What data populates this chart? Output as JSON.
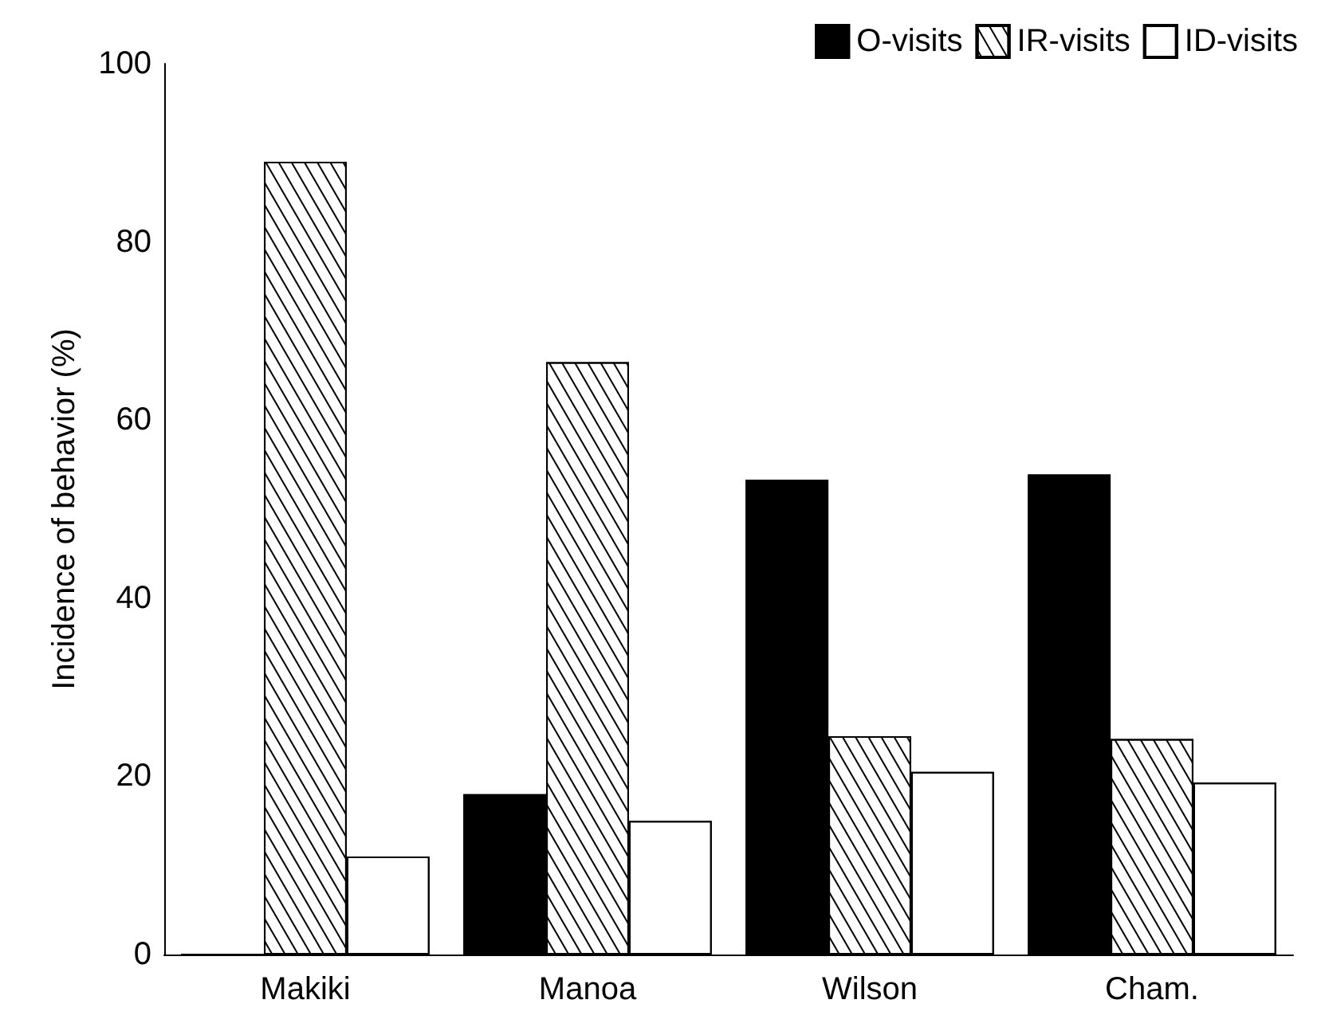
{
  "chart_data": {
    "type": "bar",
    "ylabel": "Incidence of behavior (%)",
    "categories": [
      "Makiki",
      "Manoa",
      "Wilson",
      "Cham."
    ],
    "series": [
      {
        "name": "O-visits",
        "color": "#000000",
        "values": [
          0,
          18,
          53.3,
          53.9
        ]
      },
      {
        "name": "IR-visits",
        "color": "#ffffff",
        "values": [
          89,
          66.5,
          24.5,
          24.2
        ]
      },
      {
        "name": "ID-visits",
        "color": "#ffffff",
        "values": [
          11,
          15,
          20.5,
          19.3
        ]
      }
    ],
    "ylim": [
      0,
      100
    ],
    "yticks": [
      0,
      20,
      40,
      60,
      80,
      100
    ],
    "grid": false,
    "legend": "top right"
  }
}
